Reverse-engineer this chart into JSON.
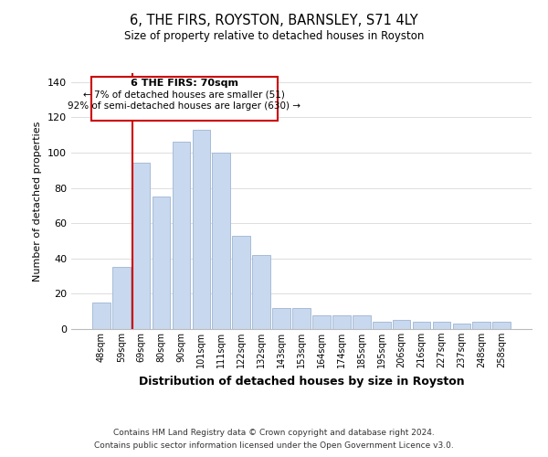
{
  "title": "6, THE FIRS, ROYSTON, BARNSLEY, S71 4LY",
  "subtitle": "Size of property relative to detached houses in Royston",
  "xlabel": "Distribution of detached houses by size in Royston",
  "ylabel": "Number of detached properties",
  "bar_labels": [
    "48sqm",
    "59sqm",
    "69sqm",
    "80sqm",
    "90sqm",
    "101sqm",
    "111sqm",
    "122sqm",
    "132sqm",
    "143sqm",
    "153sqm",
    "164sqm",
    "174sqm",
    "185sqm",
    "195sqm",
    "206sqm",
    "216sqm",
    "227sqm",
    "237sqm",
    "248sqm",
    "258sqm"
  ],
  "bar_values": [
    15,
    35,
    94,
    75,
    106,
    113,
    100,
    53,
    42,
    12,
    12,
    8,
    8,
    8,
    4,
    5,
    4,
    4,
    3,
    4,
    4
  ],
  "bar_color": "#c8d8ee",
  "bar_edge_color": "#a8bcd8",
  "marker_index": 2,
  "marker_color": "#cc0000",
  "ylim": [
    0,
    145
  ],
  "yticks": [
    0,
    20,
    40,
    60,
    80,
    100,
    120,
    140
  ],
  "annotation_title": "6 THE FIRS: 70sqm",
  "annotation_line1": "← 7% of detached houses are smaller (51)",
  "annotation_line2": "92% of semi-detached houses are larger (630) →",
  "annotation_box_color": "#ffffff",
  "annotation_box_edge": "#cc0000",
  "footer_line1": "Contains HM Land Registry data © Crown copyright and database right 2024.",
  "footer_line2": "Contains public sector information licensed under the Open Government Licence v3.0.",
  "background_color": "#ffffff",
  "grid_color": "#dddddd"
}
